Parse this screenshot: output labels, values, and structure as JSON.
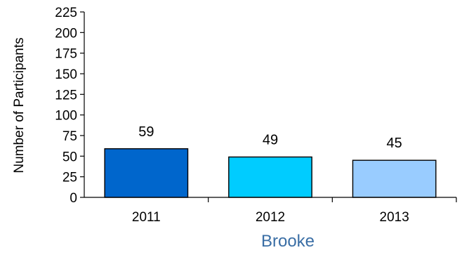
{
  "chart_data": {
    "type": "bar",
    "categories": [
      "2011",
      "2012",
      "2013"
    ],
    "values": [
      59,
      49,
      45
    ],
    "data_labels": [
      "59",
      "49",
      "45"
    ],
    "bar_colors": [
      "#0066CC",
      "#00CCFF",
      "#99CCFF"
    ],
    "xlabel": "Brooke",
    "xlabel_color": "#3A6EA5",
    "ylabel": "Number of Participants",
    "ylim": [
      0,
      225
    ],
    "yticks": [
      0,
      25,
      50,
      75,
      100,
      125,
      150,
      175,
      200,
      225
    ],
    "grid": false,
    "legend": "none"
  }
}
